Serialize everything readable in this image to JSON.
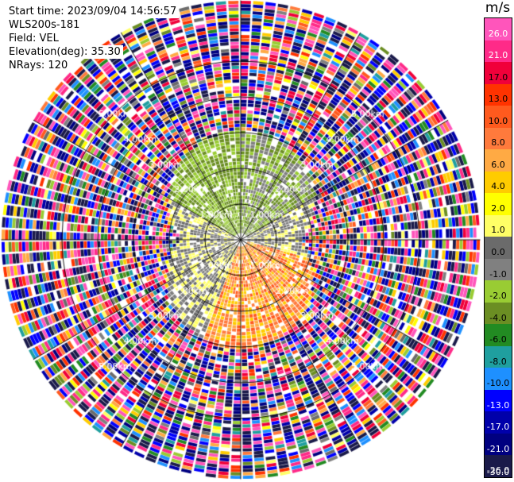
{
  "header": {
    "start_time": "Start time: 2023/09/04 14:56:57",
    "instrument": "WLS200s-181",
    "field": "Field: VEL",
    "elevation": "Elevation(deg): 35.30",
    "nrays": "NRays: 120"
  },
  "colorbar": {
    "unit": "m/s",
    "ticks": [
      "26.0",
      "21.0",
      "17.0",
      "13.0",
      "10.0",
      "8.0",
      "6.0",
      "4.0",
      "2.0",
      "1.0",
      "0.0",
      "-1.0",
      "-2.0",
      "-4.0",
      "-6.0",
      "-8.0",
      "-10.0",
      "-13.0",
      "-17.0",
      "-21.0",
      "-26.0",
      "-30.0"
    ],
    "colors": [
      "#ff55bb",
      "#ff2a88",
      "#f0003a",
      "#ff3300",
      "#ff5a1e",
      "#ff7a3c",
      "#ffaa44",
      "#ffcc00",
      "#ffff00",
      "#ffff66",
      "#6b6b6b",
      "#808080",
      "#99cc33",
      "#6b8e23",
      "#228b22",
      "#1f9f9f",
      "#1e90ff",
      "#0000ff",
      "#0000aa",
      "#000080",
      "#1a1a4a"
    ],
    "white_labels": [
      "26.0",
      "21.0",
      "-13.0",
      "-17.0",
      "-21.0",
      "-26.0",
      "-30.0"
    ]
  },
  "chart_data": {
    "type": "heatmap",
    "projection": "polar-ppi",
    "rays": 120,
    "range_km_max": 6.7,
    "range_rings_km": [
      1,
      2,
      3,
      4,
      5
    ],
    "ring_labels": [
      "1.00km",
      "2.00km",
      "3.00km",
      "4.00km",
      "5.00km"
    ],
    "field": "VEL",
    "units": "m/s",
    "vmin": -30.0,
    "vmax": 30.0,
    "clean_region_km": 3.0,
    "sector_patterns": [
      {
        "azimuth_deg": [
          300,
          360
        ],
        "values_m_s": [
          -6.0,
          -4.0
        ]
      },
      {
        "azimuth_deg": [
          0,
          60
        ],
        "values_m_s": [
          -6.0,
          -4.0,
          -2.0
        ]
      },
      {
        "azimuth_deg": [
          60,
          105
        ],
        "values_m_s": [
          -2.0,
          0.0,
          -1.0
        ]
      },
      {
        "azimuth_deg": [
          105,
          200
        ],
        "values_m_s": [
          2.0,
          4.0,
          6.0,
          8.0
        ]
      },
      {
        "azimuth_deg": [
          200,
          300
        ],
        "values_m_s": [
          0.0,
          -1.0,
          -2.0
        ]
      }
    ]
  }
}
